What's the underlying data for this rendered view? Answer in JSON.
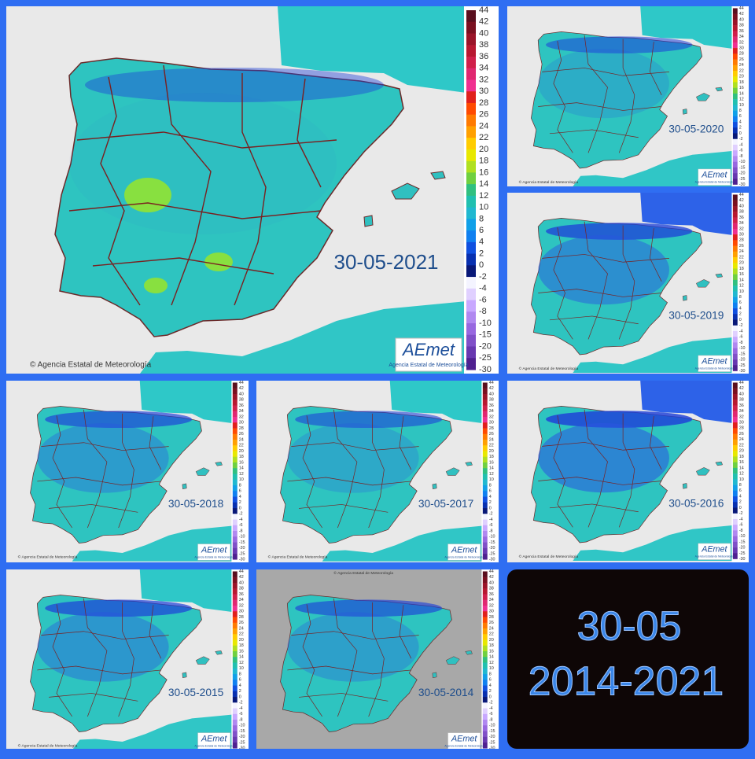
{
  "panels": [
    {
      "date": "30-05-2021"
    },
    {
      "date": "30-05-2020"
    },
    {
      "date": "30-05-2019"
    },
    {
      "date": "30-05-2018"
    },
    {
      "date": "30-05-2017"
    },
    {
      "date": "30-05-2016"
    },
    {
      "date": "30-05-2015"
    },
    {
      "date": "30-05-2014"
    }
  ],
  "legend": {
    "ticks": [
      44,
      42,
      40,
      38,
      36,
      34,
      32,
      30,
      28,
      26,
      24,
      22,
      20,
      18,
      16,
      14,
      12,
      10,
      8,
      6,
      4,
      2,
      0,
      -2,
      -4,
      -6,
      -8,
      -10,
      -15,
      -20,
      -25,
      -30
    ]
  },
  "copyright": "© Agencia Estatal de Meteorología",
  "logo": {
    "name": "AEmet",
    "subtitle": "Agencia Estatal de Meteorología"
  },
  "summary": {
    "day": "30-05",
    "years": "2014-2021"
  }
}
